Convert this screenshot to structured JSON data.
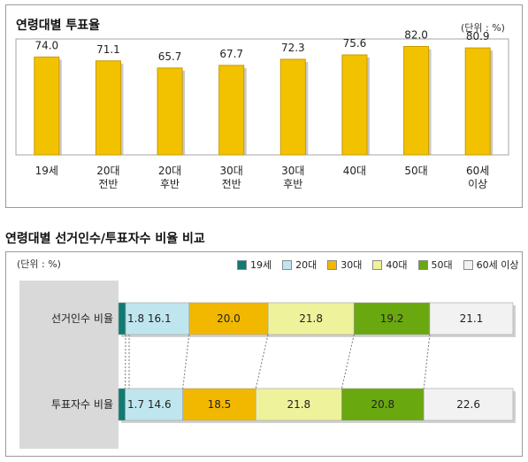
{
  "title_top": "연령대별 투표율",
  "unit_top": "(단위 : %)",
  "title_bottom": "연령대별 선거인수/투표자수 비율 비교",
  "unit_bottom": "(단위 : %)",
  "chart_data": [
    {
      "type": "bar",
      "title": "연령대별 투표율",
      "categories": [
        [
          "19세"
        ],
        [
          "20대",
          "전반"
        ],
        [
          "20대",
          "후반"
        ],
        [
          "30대",
          "전반"
        ],
        [
          "30대",
          "후반"
        ],
        [
          "40대"
        ],
        [
          "50대"
        ],
        [
          "60세",
          "이상"
        ]
      ],
      "values": [
        74.0,
        71.1,
        65.7,
        67.7,
        72.3,
        75.6,
        82.0,
        80.9
      ],
      "value_labels": [
        "74.0",
        "71.1",
        "65.7",
        "67.7",
        "72.3",
        "75.6",
        "82.0",
        "80.9"
      ],
      "ylim": [
        0,
        85
      ],
      "color": "#f2c200",
      "grid": false
    },
    {
      "type": "bar",
      "orientation": "horizontal-stacked",
      "title": "연령대별 선거인수/투표자수 비율 비교",
      "categories": [
        "선거인수 비율",
        "투표자수 비율"
      ],
      "series": [
        {
          "name": "19세",
          "color": "#0f7b72",
          "values": [
            1.8,
            1.7
          ],
          "labels": [
            "",
            ""
          ]
        },
        {
          "name": "20대",
          "color": "#bfe6ef",
          "values": [
            16.1,
            14.6
          ],
          "labels": [
            "1.8  16.1",
            "1.7  14.6"
          ]
        },
        {
          "name": "30대",
          "color": "#f2b800",
          "values": [
            20.0,
            18.5
          ],
          "labels": [
            "20.0",
            "18.5"
          ]
        },
        {
          "name": "40대",
          "color": "#eef29a",
          "values": [
            21.8,
            21.8
          ],
          "labels": [
            "21.8",
            "21.8"
          ]
        },
        {
          "name": "50대",
          "color": "#6aa80f",
          "values": [
            19.2,
            20.8
          ],
          "labels": [
            "19.2",
            "20.8"
          ]
        },
        {
          "name": "60세 이상",
          "color": "#f2f2f2",
          "values": [
            21.1,
            22.6
          ],
          "labels": [
            "21.1",
            "22.6"
          ]
        }
      ],
      "legend_position": "top-right"
    }
  ]
}
